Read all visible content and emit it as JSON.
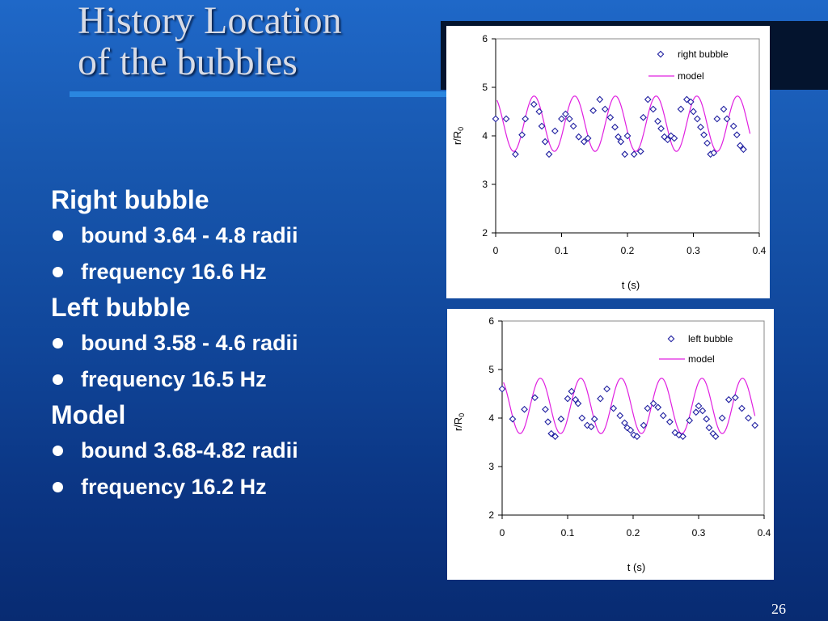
{
  "slide": {
    "title_line1": "History Location",
    "title_line2": "of the bubbles",
    "page_number": "26"
  },
  "bullets": [
    {
      "heading": "Right bubble",
      "items": [
        "bound 3.64 - 4.8 radii",
        "frequency 16.6 Hz"
      ]
    },
    {
      "heading": "Left bubble",
      "items": [
        "bound 3.58 - 4.6 radii",
        "frequency 16.5 Hz"
      ]
    },
    {
      "heading": "Model",
      "items": [
        "bound 3.68-4.82 radii",
        "frequency 16.2 Hz"
      ]
    }
  ],
  "chart_data": [
    {
      "type": "scatter",
      "xlabel": "t (s)",
      "ylabel": "r/R",
      "ylabel_sub": "0",
      "xlim": [
        0,
        0.4
      ],
      "ylim": [
        2,
        6
      ],
      "xticks": [
        "0",
        "0.1",
        "0.2",
        "0.3",
        "0.4"
      ],
      "yticks": [
        "2",
        "3",
        "4",
        "5",
        "6"
      ],
      "legend_position": "top-right",
      "grid": false,
      "series": [
        {
          "name": "right bubble",
          "style": "diamond-marker",
          "color": "#1f1fa0",
          "x": [
            0.0,
            0.016,
            0.03,
            0.04,
            0.045,
            0.058,
            0.066,
            0.07,
            0.075,
            0.081,
            0.09,
            0.1,
            0.106,
            0.112,
            0.118,
            0.126,
            0.134,
            0.14,
            0.148,
            0.158,
            0.166,
            0.174,
            0.181,
            0.186,
            0.19,
            0.196,
            0.2,
            0.21,
            0.22,
            0.224,
            0.231,
            0.239,
            0.246,
            0.251,
            0.256,
            0.261,
            0.266,
            0.271,
            0.281,
            0.29,
            0.296,
            0.3,
            0.306,
            0.311,
            0.316,
            0.321,
            0.326,
            0.331,
            0.336,
            0.346,
            0.351,
            0.361,
            0.366,
            0.371,
            0.376
          ],
          "y": [
            4.35,
            4.35,
            3.62,
            4.02,
            4.35,
            4.65,
            4.5,
            4.2,
            3.88,
            3.62,
            4.1,
            4.35,
            4.45,
            4.35,
            4.2,
            3.98,
            3.88,
            3.95,
            4.52,
            4.75,
            4.55,
            4.38,
            4.18,
            3.98,
            3.88,
            3.62,
            4.0,
            3.62,
            3.68,
            4.38,
            4.75,
            4.55,
            4.3,
            4.15,
            3.98,
            3.92,
            4.0,
            3.95,
            4.55,
            4.75,
            4.7,
            4.5,
            4.35,
            4.18,
            4.02,
            3.85,
            3.62,
            3.65,
            4.35,
            4.55,
            4.35,
            4.2,
            4.02,
            3.8,
            3.72
          ]
        },
        {
          "name": "model",
          "style": "line",
          "color": "#e020e0",
          "amplitude_bounds": [
            3.68,
            4.82
          ],
          "frequency_hz": 16.2
        }
      ]
    },
    {
      "type": "scatter",
      "xlabel": "t (s)",
      "ylabel": "r/R",
      "ylabel_sub": "0",
      "xlim": [
        0,
        0.4
      ],
      "ylim": [
        2,
        6
      ],
      "xticks": [
        "0",
        "0.1",
        "0.2",
        "0.3",
        "0.4"
      ],
      "yticks": [
        "2",
        "3",
        "4",
        "5",
        "6"
      ],
      "legend_position": "top-right",
      "grid": false,
      "series": [
        {
          "name": "left bubble",
          "style": "diamond-marker",
          "color": "#1f1fa0",
          "x": [
            0.0,
            0.016,
            0.034,
            0.05,
            0.066,
            0.07,
            0.075,
            0.081,
            0.09,
            0.1,
            0.106,
            0.112,
            0.116,
            0.122,
            0.13,
            0.136,
            0.141,
            0.15,
            0.16,
            0.17,
            0.18,
            0.187,
            0.191,
            0.196,
            0.201,
            0.206,
            0.216,
            0.222,
            0.231,
            0.238,
            0.246,
            0.256,
            0.264,
            0.27,
            0.276,
            0.286,
            0.296,
            0.3,
            0.306,
            0.312,
            0.316,
            0.322,
            0.326,
            0.336,
            0.346,
            0.356,
            0.366,
            0.376,
            0.386
          ],
          "y": [
            4.6,
            3.98,
            4.18,
            4.42,
            4.18,
            3.92,
            3.68,
            3.62,
            3.98,
            4.4,
            4.55,
            4.38,
            4.3,
            4.0,
            3.85,
            3.82,
            3.98,
            4.4,
            4.6,
            4.2,
            4.05,
            3.9,
            3.8,
            3.75,
            3.65,
            3.62,
            3.85,
            4.2,
            4.3,
            4.22,
            4.05,
            3.92,
            3.7,
            3.65,
            3.62,
            3.95,
            4.12,
            4.25,
            4.15,
            3.98,
            3.8,
            3.68,
            3.62,
            4.0,
            4.38,
            4.42,
            4.2,
            4.0,
            3.85
          ]
        },
        {
          "name": "model",
          "style": "line",
          "color": "#e020e0",
          "amplitude_bounds": [
            3.68,
            4.82
          ],
          "frequency_hz": 16.2
        }
      ]
    }
  ]
}
